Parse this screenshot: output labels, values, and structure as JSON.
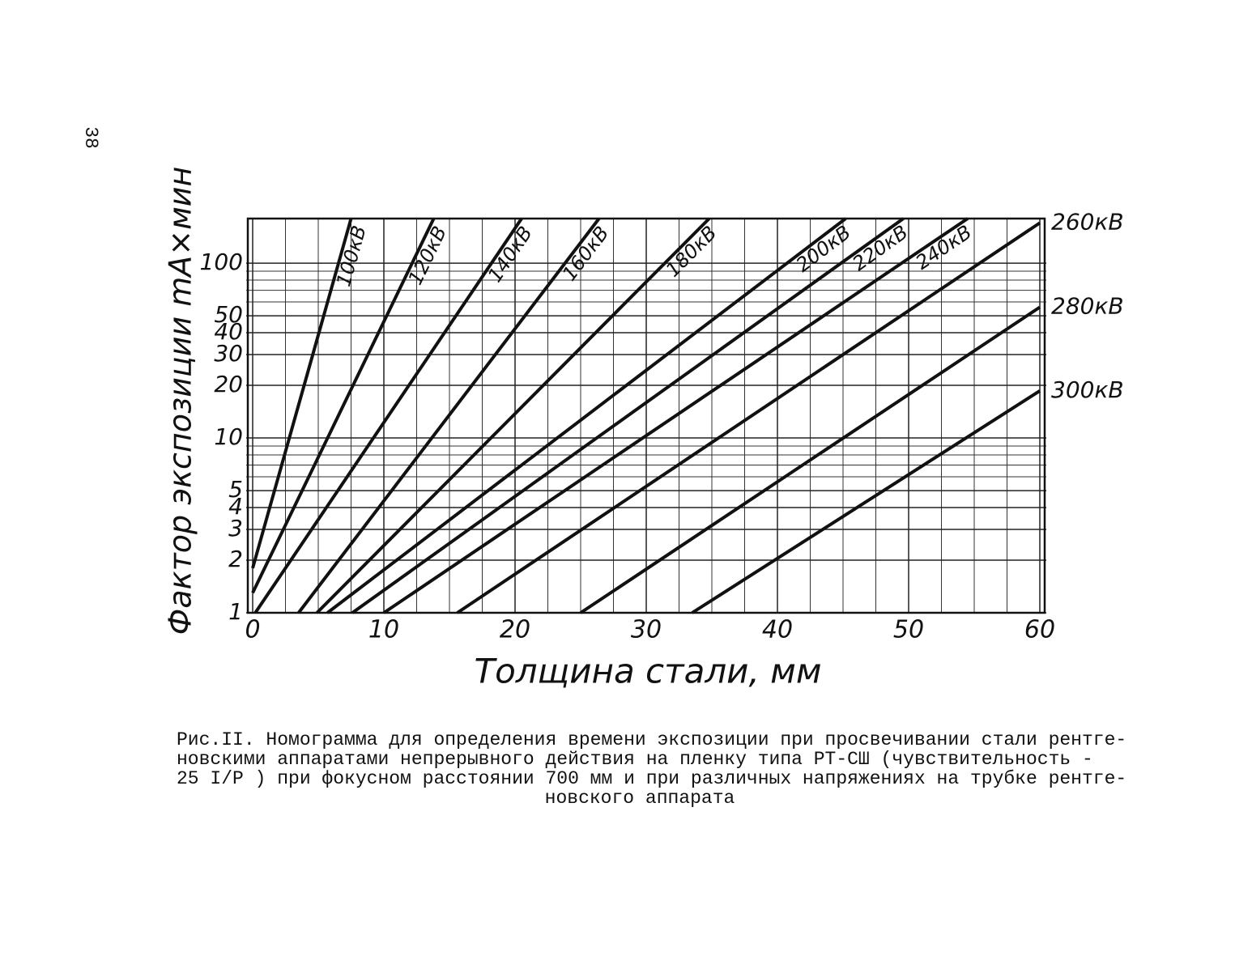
{
  "page_number": "38",
  "chart_data": {
    "type": "line",
    "y_label": "Фактор экспозиции mA×мин",
    "x_label": "Толщина стали, мм",
    "xlim": [
      0,
      60
    ],
    "ylim": [
      1,
      180
    ],
    "log_y": true,
    "grid": true,
    "color": "#111111",
    "xticks": [
      0,
      10,
      20,
      30,
      40,
      50,
      60
    ],
    "yticks": [
      1,
      2,
      3,
      4,
      5,
      10,
      20,
      30,
      40,
      50,
      100
    ],
    "x_minor_grid": [
      2.5,
      5,
      7.5,
      12.5,
      15,
      17.5,
      22.5,
      25,
      27.5,
      32.5,
      35,
      37.5,
      42.5,
      45,
      47.5,
      52.5,
      55,
      57.5
    ],
    "y_minor_grid": [
      6,
      7,
      8,
      9,
      60,
      70,
      80,
      90
    ],
    "series": [
      {
        "name": "100кВ",
        "x": [
          0,
          7.5
        ],
        "values": [
          1.8,
          180
        ]
      },
      {
        "name": "120кВ",
        "x": [
          0,
          13.8
        ],
        "values": [
          1.3,
          180
        ]
      },
      {
        "name": "140кВ",
        "x": [
          0.2,
          20.5
        ],
        "values": [
          1,
          180
        ]
      },
      {
        "name": "160кВ",
        "x": [
          3.5,
          26.4
        ],
        "values": [
          1,
          180
        ]
      },
      {
        "name": "180кВ",
        "x": [
          4.9,
          34.8
        ],
        "values": [
          1,
          180
        ]
      },
      {
        "name": "200кВ",
        "x": [
          5.7,
          45.2
        ],
        "values": [
          1,
          180
        ]
      },
      {
        "name": "220кВ",
        "x": [
          7.6,
          49.6
        ],
        "values": [
          1,
          180
        ]
      },
      {
        "name": "240кВ",
        "x": [
          10,
          54.5
        ],
        "values": [
          1,
          180
        ]
      },
      {
        "name": "260кВ",
        "x": [
          15.6,
          60
        ],
        "values": [
          1,
          170
        ]
      },
      {
        "name": "280кВ",
        "x": [
          25,
          60
        ],
        "values": [
          1,
          56
        ]
      },
      {
        "name": "300кВ",
        "x": [
          33.5,
          60
        ],
        "values": [
          1,
          18.6
        ]
      }
    ]
  },
  "caption": [
    "Рис.II. Номограмма для определения времени экспозиции при просвечивании стали рентге-",
    "новскими аппаратами непрерывного действия на пленку типа РТ-СШ (чувствительность -",
    "25 I/P ) при фокусном расстоянии 700 мм и при различных напряжениях на трубке рентге-",
    "новского аппарата"
  ]
}
